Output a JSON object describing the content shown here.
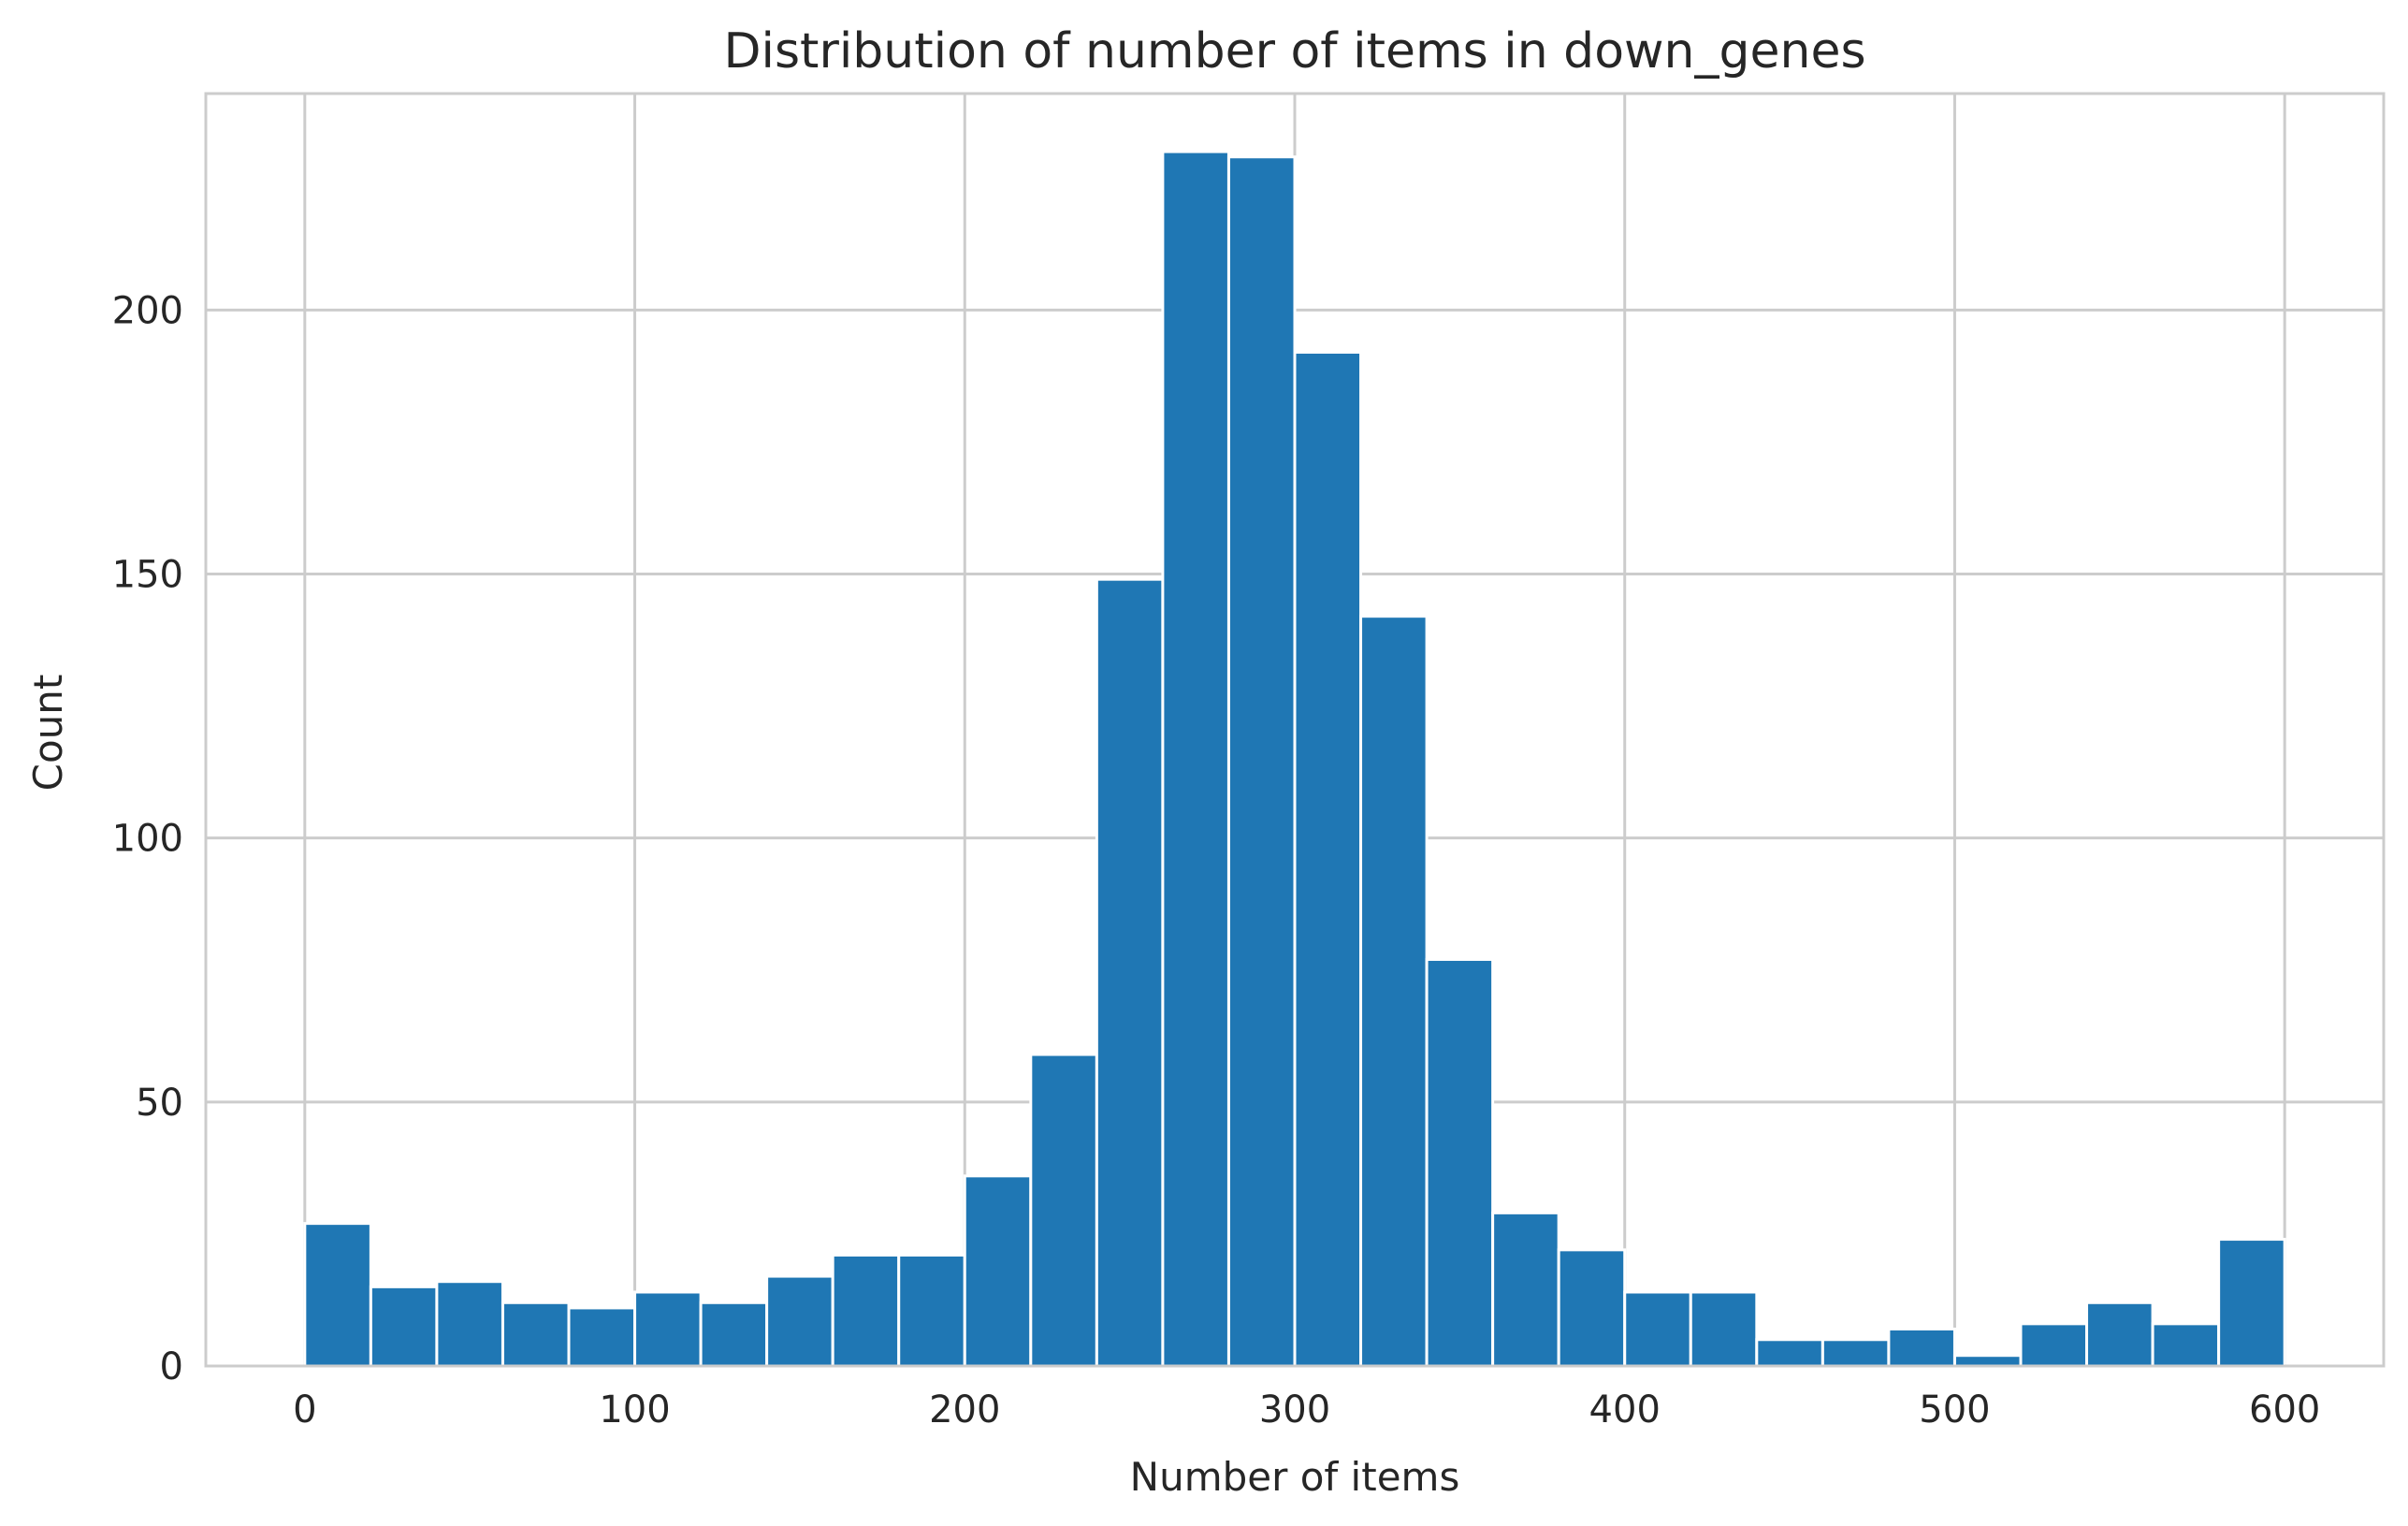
{
  "chart_data": {
    "type": "bar",
    "title": "Distribution of number of items in down_genes",
    "xlabel": "Number of items",
    "ylabel": "Count",
    "bar_color": "#1f77b4",
    "grid": true,
    "xlim": [
      -30,
      630
    ],
    "ylim": [
      0,
      241
    ],
    "xticks": [
      0,
      100,
      200,
      300,
      400,
      500,
      600
    ],
    "yticks": [
      0,
      50,
      100,
      150,
      200
    ],
    "bin_width": 20,
    "bin_edges_start": [
      0,
      20,
      40,
      60,
      80,
      100,
      120,
      140,
      160,
      180,
      200,
      220,
      240,
      260,
      280,
      300,
      320,
      340,
      360,
      380,
      400,
      420,
      440,
      460,
      480,
      500,
      520,
      540,
      560,
      580
    ],
    "values": [
      27,
      15,
      16,
      12,
      11,
      14,
      12,
      17,
      21,
      21,
      36,
      59,
      149,
      230,
      229,
      192,
      142,
      77,
      29,
      22,
      14,
      14,
      5,
      5,
      7,
      2,
      8,
      12,
      8,
      24
    ]
  }
}
